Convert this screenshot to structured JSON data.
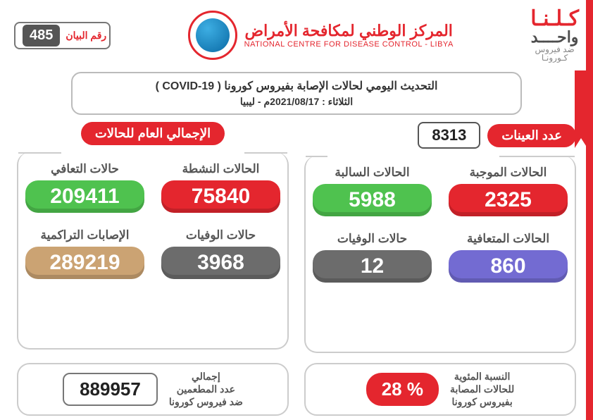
{
  "colors": {
    "red": "#e4262e",
    "green": "#4fc24f",
    "grey": "#6c6c6c",
    "purple": "#736bd2",
    "tan": "#cba373"
  },
  "header": {
    "slogan_top": "كـلـنـا",
    "slogan_mid": "واحــــد",
    "slogan_sub1": "ضد فيروس",
    "slogan_sub2": "كـورونـا",
    "org_ar": "المركز الوطني لمكافحة الأمراض",
    "org_en": "NATIONAL CENTRE FOR DISEASE CONTROL - LIBYA",
    "bayan_label": "رقم البيان",
    "bayan_number": "485"
  },
  "title": {
    "line1": "التحديث اليومي لحالات الإصابة بفيروس كورونا ( COVID-19 )",
    "line2": "الثلاثاء : 2021/08/17م - ليبيا"
  },
  "samples": {
    "label": "عدد العينات",
    "value": "8313",
    "items": [
      {
        "label": "الحالات الموجبة",
        "value": "2325",
        "color": "#e4262e"
      },
      {
        "label": "الحالات السالبة",
        "value": "5988",
        "color": "#4fc24f"
      },
      {
        "label": "الحالات المتعافية",
        "value": "860",
        "color": "#736bd2"
      },
      {
        "label": "حالات الوفيات",
        "value": "12",
        "color": "#6c6c6c"
      }
    ]
  },
  "totals": {
    "label": "الإجمالي العام للحالات",
    "items": [
      {
        "label": "الحالات النشطة",
        "value": "75840",
        "color": "#e4262e"
      },
      {
        "label": "حالات التعافي",
        "value": "209411",
        "color": "#4fc24f"
      },
      {
        "label": "حالات الوفيات",
        "value": "3968",
        "color": "#6c6c6c"
      },
      {
        "label": "الإصابات التراكمية",
        "value": "289219",
        "color": "#cba373"
      }
    ]
  },
  "footer": {
    "pct_value": "% 28",
    "pct_label": "النسبة المئوية\nللحالات المصابة\nبفيروس كورونا",
    "vacc_value": "889957",
    "vacc_label": "إجمالي\nعدد المطعمين\nضد فيروس كورونا"
  }
}
